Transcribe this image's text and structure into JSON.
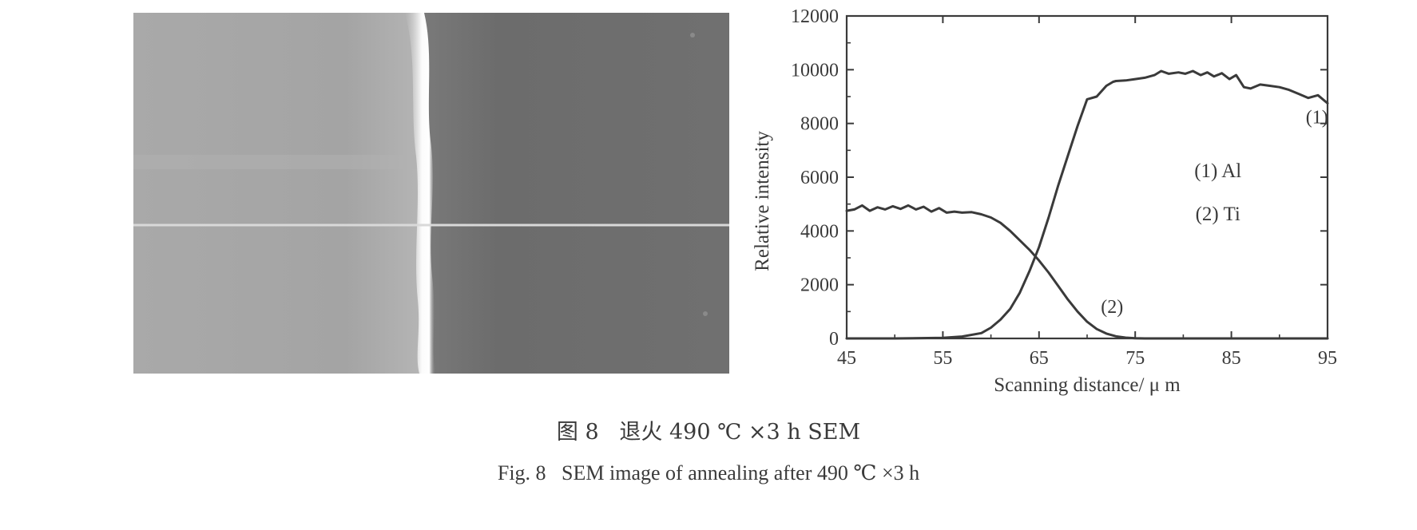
{
  "figure": {
    "caption_cn": "图 8   退火 490 ℃ ×3 h SEM",
    "caption_en": "Fig. 8   SEM image of annealing after 490 ℃ ×3 h"
  },
  "sem_image": {
    "left_region_color": "#a8a8a8",
    "right_region_color": "#6b6b6b",
    "interface_color": "#f4f4f4",
    "scan_line_color": "#d8d8d8"
  },
  "chart_data": {
    "type": "line",
    "xlabel": "Scanning distance/ μ m",
    "ylabel": "Relative intensity",
    "xlim": [
      45,
      95
    ],
    "ylim": [
      0,
      12000
    ],
    "xticks": [
      45,
      55,
      65,
      75,
      85,
      95
    ],
    "yticks": [
      0,
      2000,
      4000,
      6000,
      8000,
      10000,
      12000
    ],
    "grid": false,
    "legend": {
      "placement": "right-middle",
      "entries": [
        "(1) Al",
        "(2) Ti"
      ]
    },
    "line_color": "#3a3a3a",
    "series": [
      {
        "label": "(1)",
        "label_at": [
          93.9,
          8000
        ],
        "x": [
          45,
          50,
          55,
          57,
          59,
          60,
          61,
          62,
          63,
          64,
          65,
          66,
          67,
          68,
          69,
          70,
          71,
          72,
          72.7,
          73,
          74,
          75,
          76,
          77,
          77.7,
          78.5,
          79.5,
          80.2,
          81,
          81.8,
          82.5,
          83.2,
          84,
          84.8,
          85.5,
          86.3,
          87,
          88,
          89,
          90,
          91,
          92,
          93,
          94,
          95
        ],
        "y": [
          0,
          0,
          20,
          70,
          200,
          400,
          700,
          1100,
          1700,
          2500,
          3400,
          4500,
          5700,
          6800,
          7900,
          8900,
          9000,
          9400,
          9550,
          9580,
          9600,
          9650,
          9700,
          9800,
          9950,
          9850,
          9900,
          9850,
          9950,
          9800,
          9900,
          9750,
          9870,
          9650,
          9800,
          9350,
          9300,
          9450,
          9400,
          9350,
          9250,
          9100,
          8950,
          9050,
          8750
        ]
      },
      {
        "label": "(2)",
        "label_at": [
          72.6,
          950
        ],
        "x": [
          45,
          45.8,
          46.6,
          47.4,
          48.2,
          49,
          49.8,
          50.6,
          51.4,
          52.2,
          53,
          53.8,
          54.6,
          55.4,
          56.2,
          57,
          58,
          59,
          60,
          61,
          62,
          63,
          64,
          65,
          66,
          67,
          68,
          69,
          70,
          71,
          72,
          73,
          74,
          75,
          76,
          77,
          80,
          85,
          90,
          95
        ],
        "y": [
          4750,
          4800,
          4950,
          4750,
          4880,
          4800,
          4920,
          4820,
          4950,
          4800,
          4900,
          4720,
          4850,
          4680,
          4720,
          4680,
          4700,
          4620,
          4500,
          4300,
          4000,
          3650,
          3300,
          2900,
          2450,
          1950,
          1450,
          1000,
          620,
          350,
          180,
          80,
          30,
          10,
          0,
          0,
          0,
          0,
          0,
          0
        ]
      }
    ]
  }
}
